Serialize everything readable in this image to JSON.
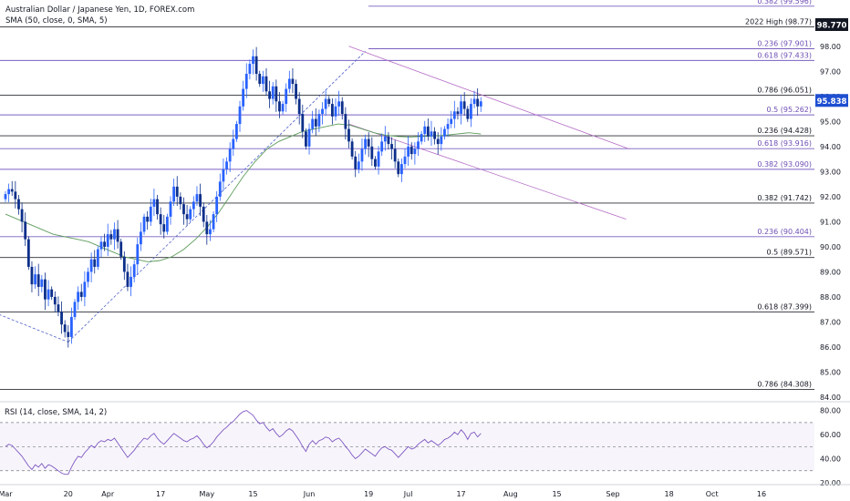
{
  "header": {
    "title": "Australian Dollar / Japanese Yen, 1D, FOREX.com",
    "indicator": "SMA (50, close, 0, SMA, 5)"
  },
  "chart_data": {
    "type": "candlestick",
    "symbol": "AUD/JPY",
    "y_range": [
      84,
      99.7
    ],
    "y_ticks": [
      "98.00",
      "97.00",
      "96.00",
      "95.00",
      "94.00",
      "93.00",
      "92.00",
      "91.00",
      "90.00",
      "89.00",
      "88.00",
      "87.00",
      "86.00",
      "85.00",
      "84.00"
    ],
    "last_price": "95.838",
    "high_2022_badge": "98.770",
    "x_ticks": [
      {
        "label": "Mar",
        "day": 0
      },
      {
        "label": "20",
        "day": 19
      },
      {
        "label": "Apr",
        "day": 31
      },
      {
        "label": "17",
        "day": 47
      },
      {
        "label": "May",
        "day": 61
      },
      {
        "label": "15",
        "day": 75
      },
      {
        "label": "Jun",
        "day": 92
      },
      {
        "label": "19",
        "day": 110
      },
      {
        "label": "Jul",
        "day": 122
      },
      {
        "label": "17",
        "day": 138
      },
      {
        "label": "Aug",
        "day": 153
      },
      {
        "label": "15",
        "day": 167
      },
      {
        "label": "Sep",
        "day": 184
      },
      {
        "label": "18",
        "day": 201
      },
      {
        "label": "Oct",
        "day": 214
      },
      {
        "label": "16",
        "day": 229
      }
    ],
    "levels": [
      {
        "value": 99.596,
        "label": "0.382 (99.596)",
        "color": "#6e4fb5"
      },
      {
        "value": 98.77,
        "label": "2022 High (98.77)",
        "color": "#131722"
      },
      {
        "value": 97.901,
        "label": "0.236 (97.901)",
        "color": "#6e4fb5"
      },
      {
        "value": 97.433,
        "label": "0.618 (97.433)",
        "color": "#6e4fb5"
      },
      {
        "value": 96.051,
        "label": "0.786 (96.051)",
        "color": "#131722"
      },
      {
        "value": 95.262,
        "label": "0.5 (95.262)",
        "color": "#6e4fb5"
      },
      {
        "value": 94.428,
        "label": "0.236 (94.428)",
        "color": "#131722"
      },
      {
        "value": 93.916,
        "label": "0.618 (93.916)",
        "color": "#6e4fb5"
      },
      {
        "value": 93.09,
        "label": "0.382 (93.090)",
        "color": "#6e4fb5"
      },
      {
        "value": 91.742,
        "label": "0.382 (91.742)",
        "color": "#131722"
      },
      {
        "value": 90.404,
        "label": "0.236 (90.404)",
        "color": "#6e4fb5"
      },
      {
        "value": 89.571,
        "label": "0.5 (89.571)",
        "color": "#131722"
      },
      {
        "value": 87.399,
        "label": "0.618 (87.399)",
        "color": "#131722"
      },
      {
        "value": 84.308,
        "label": "0.786 (84.308)",
        "color": "#131722"
      }
    ],
    "closes": [
      92.1,
      92.3,
      92.2,
      91.9,
      91.5,
      91.0,
      90.3,
      89.2,
      88.5,
      88.9,
      88.4,
      88.7,
      87.9,
      88.3,
      88.0,
      87.7,
      87.4,
      86.9,
      86.6,
      86.4,
      87.2,
      87.8,
      88.2,
      88.0,
      88.6,
      89.0,
      89.5,
      89.2,
      89.9,
      90.2,
      90.0,
      90.5,
      90.3,
      90.7,
      90.2,
      89.6,
      89.0,
      88.4,
      88.8,
      89.3,
      90.1,
      90.6,
      91.2,
      91.0,
      91.6,
      91.9,
      91.3,
      90.9,
      90.6,
      91.2,
      91.8,
      92.4,
      92.0,
      91.7,
      91.3,
      91.1,
      91.5,
      91.8,
      92.1,
      91.6,
      91.0,
      90.5,
      90.7,
      91.3,
      92.0,
      92.6,
      93.1,
      93.4,
      93.9,
      94.3,
      94.9,
      95.6,
      96.3,
      96.9,
      97.3,
      97.6,
      96.9,
      96.5,
      96.8,
      96.2,
      95.9,
      96.4,
      95.8,
      95.4,
      95.7,
      96.3,
      96.7,
      96.5,
      95.9,
      95.3,
      94.6,
      94.0,
      94.7,
      95.1,
      94.8,
      95.3,
      95.5,
      95.9,
      95.7,
      95.2,
      95.6,
      95.8,
      95.3,
      94.7,
      94.2,
      93.6,
      93.1,
      93.4,
      93.9,
      94.3,
      94.0,
      93.5,
      93.2,
      93.8,
      94.2,
      94.4,
      94.1,
      93.9,
      93.4,
      92.9,
      93.3,
      93.6,
      94.0,
      93.7,
      93.9,
      94.2,
      94.5,
      94.8,
      94.4,
      94.6,
      94.3,
      94.1,
      94.4,
      94.7,
      94.9,
      95.1,
      95.4,
      95.3,
      95.8,
      95.5,
      95.1,
      95.7,
      95.9,
      95.6,
      95.8
    ],
    "sma_values": [
      91.3,
      91.1,
      90.9,
      90.7,
      90.5,
      90.4,
      90.3,
      90.2,
      90.0,
      89.8,
      89.6,
      89.5,
      89.4,
      89.45,
      89.6,
      89.9,
      90.3,
      90.8,
      91.4,
      92.1,
      92.8,
      93.4,
      93.9,
      94.2,
      94.4,
      94.6,
      94.7,
      94.8,
      94.9,
      94.85,
      94.7,
      94.55,
      94.45,
      94.4,
      94.38,
      94.4,
      94.42,
      94.45,
      94.5,
      94.55,
      94.5
    ],
    "rsi": {
      "label": "RSI (14, close, SMA, 14, 2)",
      "range": [
        20,
        85
      ],
      "ticks": [
        "80.00",
        "60.00",
        "40.00",
        "20.00"
      ],
      "bands": [
        70,
        50,
        30
      ],
      "values": [
        50,
        52,
        51,
        48,
        45,
        42,
        38,
        34,
        31,
        35,
        33,
        36,
        32,
        35,
        34,
        32,
        30,
        28,
        27,
        27,
        33,
        38,
        42,
        41,
        45,
        48,
        51,
        49,
        53,
        55,
        54,
        56,
        55,
        57,
        53,
        49,
        45,
        41,
        44,
        47,
        51,
        54,
        57,
        56,
        59,
        61,
        57,
        54,
        52,
        55,
        58,
        61,
        59,
        57,
        55,
        54,
        56,
        57,
        59,
        56,
        52,
        49,
        51,
        54,
        58,
        61,
        64,
        66,
        69,
        71,
        74,
        77,
        79,
        80,
        78,
        76,
        72,
        69,
        70,
        66,
        63,
        65,
        61,
        58,
        60,
        63,
        65,
        63,
        59,
        55,
        50,
        46,
        52,
        55,
        52,
        55,
        56,
        58,
        57,
        54,
        56,
        57,
        54,
        50,
        47,
        43,
        40,
        42,
        45,
        48,
        46,
        44,
        42,
        46,
        49,
        50,
        48,
        47,
        44,
        41,
        44,
        47,
        50,
        48,
        49,
        52,
        54,
        56,
        53,
        55,
        53,
        51,
        53,
        56,
        57,
        59,
        62,
        60,
        64,
        61,
        56,
        61,
        62,
        58,
        61
      ]
    }
  }
}
